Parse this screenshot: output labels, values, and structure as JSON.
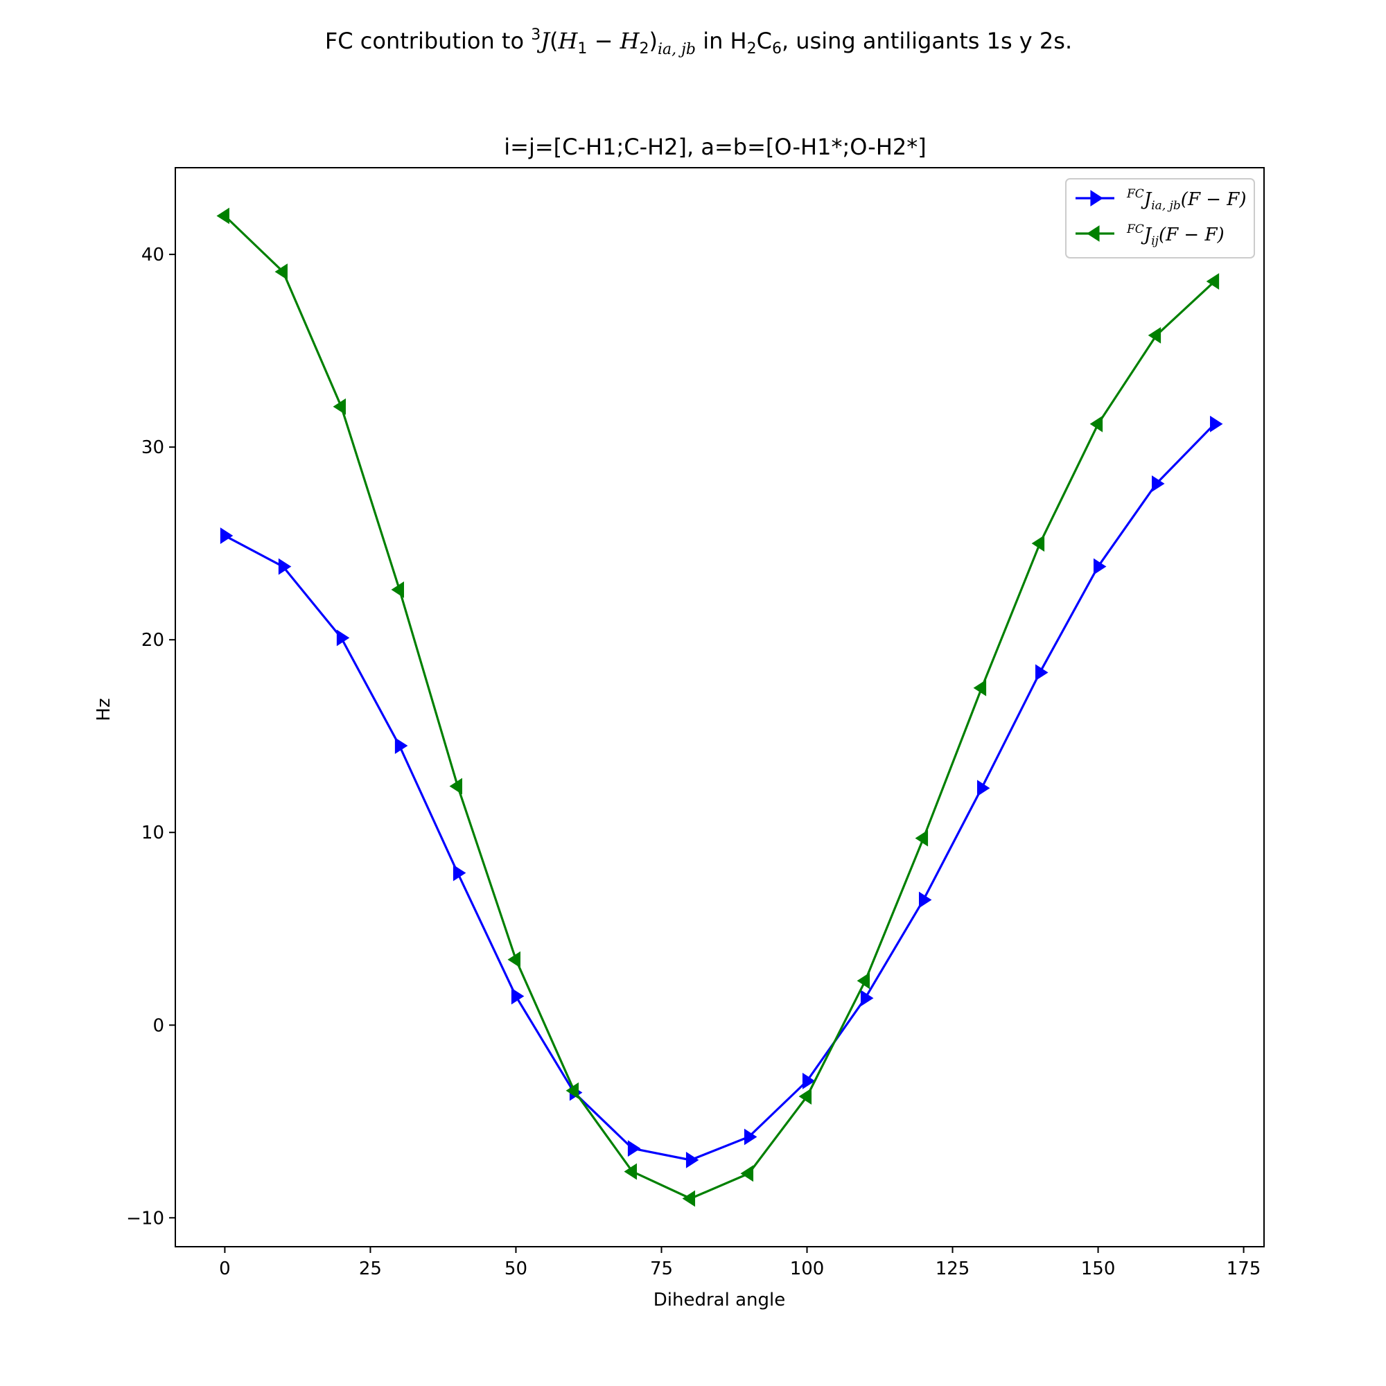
{
  "chart_data": {
    "type": "line",
    "suptitle": {
      "prefix": "FC contribution to ",
      "sup": "3",
      "J": "J",
      "paren_open": "(",
      "H1": "H",
      "sub1": "1",
      "minus": " − ",
      "H2": "H",
      "sub2": "2",
      "paren_close": ")",
      "sub_iajb": "ia, jb",
      "mid": " in H",
      "sub_h2": "2",
      "c": "C",
      "sub_c6": "6",
      "suffix": ", using antiligants 1s y 2s."
    },
    "title": "i=j=[C-H1;C-H2], a=b=[O-H1*;O-H2*]",
    "xlabel": "Dihedral angle",
    "ylabel": "Hz",
    "xlim": [
      -8.5,
      178.5
    ],
    "ylim": [
      -11.5,
      44.5
    ],
    "xticks": [
      0,
      25,
      50,
      75,
      100,
      125,
      150,
      175
    ],
    "yticks": [
      -10,
      0,
      10,
      20,
      30,
      40
    ],
    "ytick_labels": [
      "−10",
      "0",
      "10",
      "20",
      "30",
      "40"
    ],
    "grid": false,
    "legend_position": "top-right",
    "x": [
      0,
      10,
      20,
      30,
      40,
      50,
      60,
      70,
      80,
      90,
      100,
      110,
      120,
      130,
      140,
      150,
      160,
      170
    ],
    "series": [
      {
        "name": "FCJia,jb(F−F)",
        "legend": {
          "sup": "FC",
          "J": "J",
          "sub": "ia, jb",
          "rest": "(F − F)"
        },
        "color": "#0000ff",
        "marker": "triangle-right",
        "values": [
          25.4,
          23.8,
          20.1,
          14.5,
          7.9,
          1.5,
          -3.5,
          -6.4,
          -7.0,
          -5.8,
          -2.9,
          1.4,
          6.5,
          12.3,
          18.3,
          23.8,
          28.1,
          31.2
        ]
      },
      {
        "name": "FCJij(F−F)",
        "legend": {
          "sup": "FC",
          "J": "J",
          "sub": "ij",
          "rest": "(F − F)"
        },
        "color": "#008000",
        "marker": "triangle-left",
        "values": [
          42.0,
          39.1,
          32.1,
          22.6,
          12.4,
          3.4,
          -3.4,
          -7.6,
          -9.0,
          -7.7,
          -3.7,
          2.3,
          9.7,
          17.5,
          25.0,
          31.2,
          35.8,
          38.6
        ]
      }
    ]
  }
}
